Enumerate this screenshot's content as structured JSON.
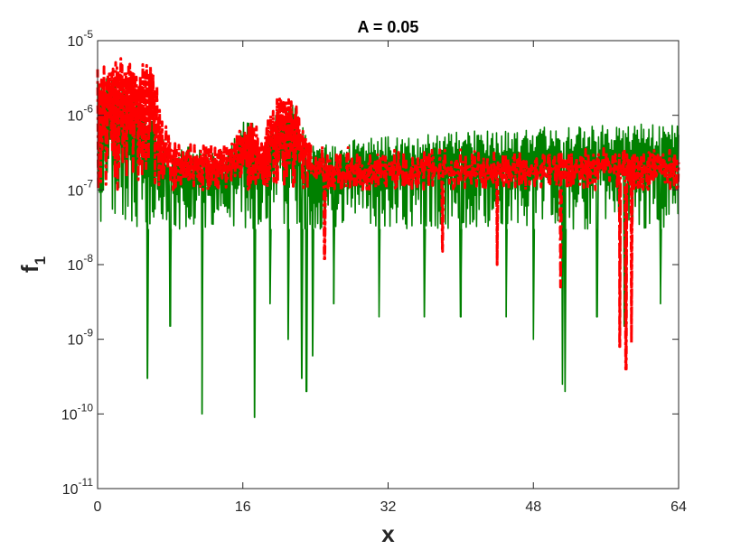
{
  "chart_data": {
    "type": "line",
    "title": "A = 0.05",
    "xlabel": "x",
    "ylabel": "f",
    "ylabel_subscript": "1",
    "xlim": [
      0,
      64
    ],
    "ylim": [
      1e-11,
      1e-05
    ],
    "yscale": "log",
    "grid": false,
    "x_ticks": [
      {
        "value": 0,
        "label": "0"
      },
      {
        "value": 16,
        "label": "16"
      },
      {
        "value": 32,
        "label": "32"
      },
      {
        "value": 48,
        "label": "48"
      },
      {
        "value": 64,
        "label": "64"
      }
    ],
    "y_ticks": [
      {
        "value": 1e-11,
        "base": "10",
        "exp": "-11"
      },
      {
        "value": 1e-10,
        "base": "10",
        "exp": "-10"
      },
      {
        "value": 1e-09,
        "base": "10",
        "exp": "-9"
      },
      {
        "value": 1e-08,
        "base": "10",
        "exp": "-8"
      },
      {
        "value": 1e-07,
        "base": "10",
        "exp": "-7"
      },
      {
        "value": 1e-06,
        "base": "10",
        "exp": "-6"
      },
      {
        "value": 1e-05,
        "base": "10",
        "exp": "-5"
      }
    ],
    "series": [
      {
        "color": "#ff0000",
        "style": "dash-dot",
        "envelope_points": [
          [
            0,
            4.2e-06
          ],
          [
            2,
            5.5e-06
          ],
          [
            3.5,
            6.5e-06
          ],
          [
            4.5,
            4e-06
          ],
          [
            5.2,
            6e-06
          ],
          [
            5.8,
            7.2e-06
          ],
          [
            6.5,
            3e-06
          ],
          [
            7,
            1e-06
          ],
          [
            8,
            6e-07
          ],
          [
            10,
            4.5e-07
          ],
          [
            13,
            4e-07
          ],
          [
            15,
            5e-07
          ],
          [
            16,
            1e-06
          ],
          [
            17,
            1.3e-06
          ],
          [
            18,
            5e-07
          ],
          [
            19,
            1.2e-06
          ],
          [
            20,
            2.1e-06
          ],
          [
            21,
            1.9e-06
          ],
          [
            22,
            1.5e-06
          ],
          [
            23,
            6e-07
          ],
          [
            24,
            4e-07
          ],
          [
            30,
            3.5e-07
          ],
          [
            40,
            3.5e-07
          ],
          [
            50,
            3.2e-07
          ],
          [
            56,
            3.8e-07
          ],
          [
            60,
            3.5e-07
          ],
          [
            64,
            3.5e-07
          ]
        ],
        "dips": [
          [
            51,
            5e-09
          ],
          [
            57.5,
            8e-10
          ],
          [
            58.2,
            4e-10
          ],
          [
            58.8,
            9e-10
          ],
          [
            44,
            1e-08
          ],
          [
            38,
            1.5e-08
          ],
          [
            25,
            1.2e-08
          ]
        ],
        "floor": 1e-07
      },
      {
        "color": "#008000",
        "style": "solid",
        "envelope_points": [
          [
            0,
            3.6e-06
          ],
          [
            2,
            3.2e-06
          ],
          [
            4,
            2.5e-06
          ],
          [
            5,
            1.5e-06
          ],
          [
            6,
            1.2e-06
          ],
          [
            7,
            5e-07
          ],
          [
            8,
            4e-07
          ],
          [
            14,
            3.5e-07
          ],
          [
            16,
            8e-07
          ],
          [
            17,
            1e-06
          ],
          [
            18,
            3e-07
          ],
          [
            19,
            7e-07
          ],
          [
            20,
            1.3e-06
          ],
          [
            21,
            1.6e-06
          ],
          [
            22,
            1.3e-06
          ],
          [
            23,
            5e-07
          ],
          [
            24,
            4e-07
          ],
          [
            30,
            5e-07
          ],
          [
            40,
            6e-07
          ],
          [
            50,
            7e-07
          ],
          [
            58,
            7.5e-07
          ],
          [
            64,
            8e-07
          ]
        ],
        "dips": [
          [
            5.5,
            3e-10
          ],
          [
            11.5,
            1e-10
          ],
          [
            17.3,
            9e-11
          ],
          [
            8,
            1.5e-09
          ],
          [
            19,
            3e-09
          ],
          [
            21,
            1e-09
          ],
          [
            22.5,
            3e-10
          ],
          [
            23,
            2e-10
          ],
          [
            23.7,
            6e-10
          ],
          [
            26,
            3e-09
          ],
          [
            31,
            2e-09
          ],
          [
            36,
            2e-09
          ],
          [
            40,
            2e-09
          ],
          [
            45,
            2e-09
          ],
          [
            48,
            1e-09
          ],
          [
            51.2,
            2.5e-10
          ],
          [
            51.5,
            2e-10
          ],
          [
            55,
            2e-09
          ],
          [
            58,
            1.5e-09
          ],
          [
            62,
            3e-09
          ]
        ],
        "floor": 3e-08
      }
    ]
  }
}
